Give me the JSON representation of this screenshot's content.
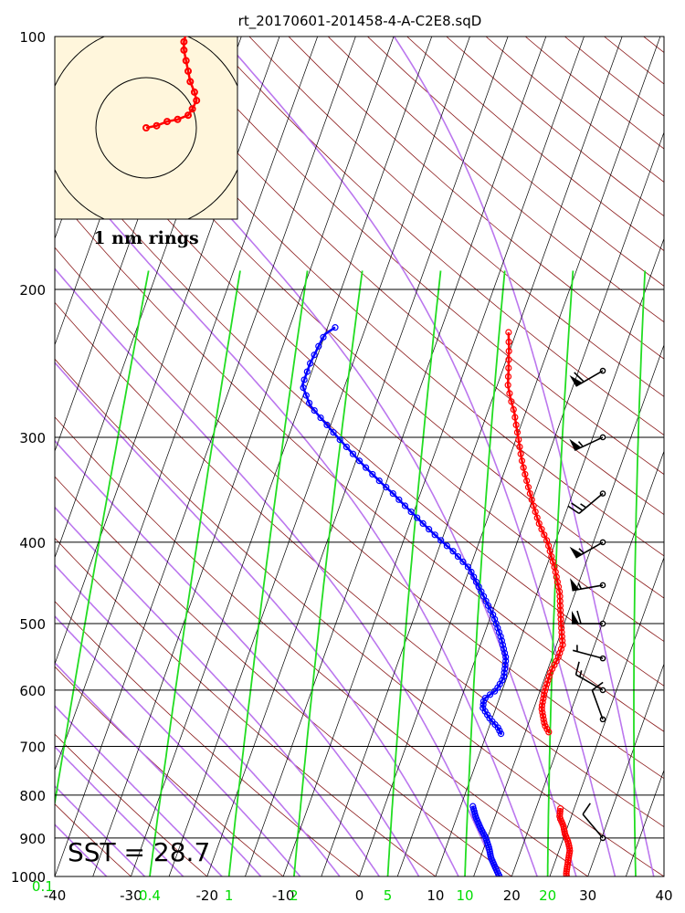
{
  "chart_data": {
    "type": "skew-t",
    "title": "rt_20170601-201458-4-A-C2E8.sqD",
    "pressure_ticks": [
      100,
      200,
      300,
      400,
      500,
      600,
      700,
      800,
      900,
      1000
    ],
    "temperature_ticks": [
      -40,
      -30,
      -20,
      -10,
      0,
      10,
      20,
      30,
      40
    ],
    "xlim": [
      -40,
      40
    ],
    "ylim": [
      1000,
      100
    ],
    "mixing_ratio_labels": [
      "0.1",
      "0.4",
      "1",
      "2",
      "5",
      "10",
      "20"
    ],
    "sst_label": "SST = 28.7",
    "hodograph_label": "1 nm rings",
    "temperature_profile": {
      "color": "#ff0000",
      "segments": [
        [
          [
            225,
            -6.0
          ],
          [
            235,
            -5.2
          ],
          [
            250,
            -4.2
          ],
          [
            260,
            -3.6
          ],
          [
            270,
            -2.6
          ],
          [
            280,
            -1.5
          ],
          [
            300,
            0.2
          ],
          [
            320,
            1.8
          ],
          [
            350,
            4.4
          ],
          [
            380,
            7.0
          ],
          [
            400,
            9.0
          ],
          [
            430,
            11.2
          ],
          [
            460,
            13.0
          ],
          [
            500,
            14.6
          ],
          [
            530,
            15.8
          ],
          [
            550,
            15.8
          ],
          [
            570,
            15.5
          ],
          [
            600,
            15.6
          ],
          [
            630,
            16.0
          ],
          [
            660,
            17.2
          ],
          [
            675,
            18.2
          ]
        ],
        [
          [
            830,
            23.2
          ],
          [
            850,
            23.5
          ],
          [
            870,
            24.4
          ],
          [
            890,
            25.0
          ],
          [
            910,
            25.8
          ],
          [
            930,
            26.4
          ],
          [
            950,
            26.6
          ],
          [
            970,
            26.8
          ],
          [
            990,
            27.0
          ],
          [
            1000,
            27.2
          ]
        ]
      ]
    },
    "dewpoint_profile": {
      "color": "#0000ff",
      "segments": [
        [
          [
            222,
            -29.0
          ],
          [
            226,
            -30.0
          ],
          [
            230,
            -30.2
          ],
          [
            245,
            -30.6
          ],
          [
            260,
            -30.6
          ],
          [
            275,
            -28.6
          ],
          [
            290,
            -25.5
          ],
          [
            310,
            -21.5
          ],
          [
            330,
            -17.6
          ],
          [
            350,
            -13.6
          ],
          [
            370,
            -10.0
          ],
          [
            390,
            -6.5
          ],
          [
            410,
            -3.0
          ],
          [
            430,
            0.0
          ],
          [
            460,
            2.8
          ],
          [
            490,
            5.4
          ],
          [
            520,
            7.4
          ],
          [
            550,
            9.0
          ],
          [
            580,
            9.6
          ],
          [
            600,
            9.2
          ],
          [
            615,
            8.0
          ],
          [
            630,
            8.3
          ],
          [
            650,
            9.8
          ],
          [
            665,
            11.2
          ],
          [
            678,
            12.0
          ]
        ],
        [
          [
            825,
            11.6
          ],
          [
            850,
            12.5
          ],
          [
            875,
            13.6
          ],
          [
            900,
            14.8
          ],
          [
            925,
            15.7
          ],
          [
            950,
            16.4
          ],
          [
            975,
            17.4
          ],
          [
            1000,
            18.4
          ]
        ]
      ]
    },
    "wind_barbs": [
      {
        "p": 250,
        "dir": 240,
        "spd": 60
      },
      {
        "p": 300,
        "dir": 245,
        "spd": 55
      },
      {
        "p": 350,
        "dir": 230,
        "spd": 25
      },
      {
        "p": 400,
        "dir": 240,
        "spd": 55
      },
      {
        "p": 450,
        "dir": 260,
        "spd": 55
      },
      {
        "p": 500,
        "dir": 270,
        "spd": 60
      },
      {
        "p": 550,
        "dir": 285,
        "spd": 5
      },
      {
        "p": 600,
        "dir": 300,
        "spd": 15
      },
      {
        "p": 650,
        "dir": 340,
        "spd": 10
      },
      {
        "p": 900,
        "dir": 320,
        "spd": 10
      }
    ],
    "hodograph": {
      "points": [
        [
          0,
          0
        ],
        [
          5,
          1
        ],
        [
          10,
          3
        ],
        [
          15,
          4
        ],
        [
          20,
          6
        ],
        [
          22,
          9
        ],
        [
          24,
          13
        ],
        [
          23,
          17
        ],
        [
          21,
          22
        ],
        [
          20,
          27
        ],
        [
          19,
          32
        ],
        [
          18,
          37
        ],
        [
          18,
          41
        ],
        [
          19,
          45
        ]
      ]
    }
  }
}
